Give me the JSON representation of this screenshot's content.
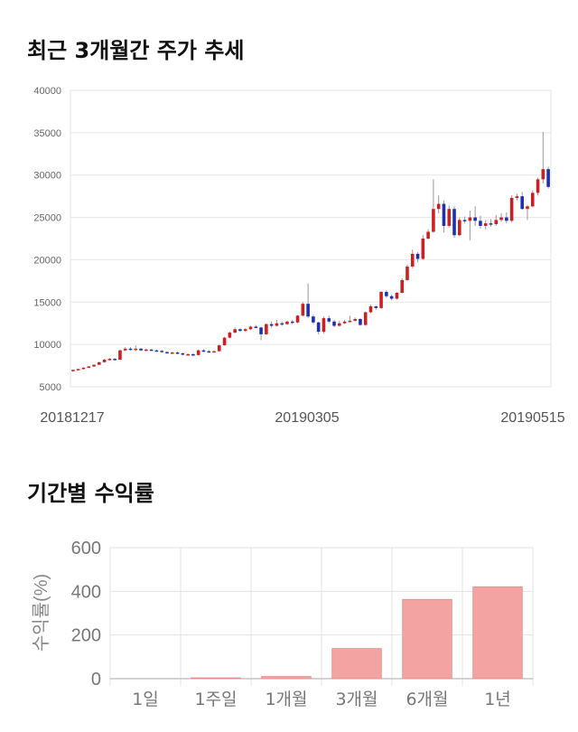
{
  "titles": {
    "price_trend": "최근 3개월간 주가 추세",
    "period_returns": "기간별 수익률"
  },
  "chart_data": [
    {
      "type": "candlestick",
      "title": "최근 3개월간 주가 추세",
      "ylim": [
        5000,
        40000
      ],
      "y_ticks": [
        5000,
        10000,
        15000,
        20000,
        25000,
        30000,
        35000,
        40000
      ],
      "x_tick_labels": [
        "20181217",
        "20190305",
        "20190515"
      ],
      "up_color": "#cc1f1f",
      "down_color": "#1f2fb4",
      "grid": true,
      "candles": [
        [
          6900,
          7000,
          6800,
          7050
        ],
        [
          7000,
          7100,
          6950,
          7150
        ],
        [
          7100,
          7250,
          7050,
          7300
        ],
        [
          7250,
          7400,
          7200,
          7450
        ],
        [
          7400,
          7600,
          7350,
          7650
        ],
        [
          7600,
          7900,
          7550,
          7950
        ],
        [
          7900,
          8200,
          7850,
          8300
        ],
        [
          8200,
          8300,
          8100,
          8400
        ],
        [
          8300,
          8200,
          8100,
          8400
        ],
        [
          8200,
          9300,
          8150,
          9400
        ],
        [
          9300,
          9500,
          9200,
          9700
        ],
        [
          9500,
          9400,
          9300,
          9700
        ],
        [
          9400,
          9500,
          9200,
          9900
        ],
        [
          9500,
          9300,
          9200,
          9600
        ],
        [
          9300,
          9400,
          9200,
          9500
        ],
        [
          9400,
          9300,
          9250,
          9450
        ],
        [
          9300,
          9250,
          9150,
          9400
        ],
        [
          9250,
          9100,
          9000,
          9350
        ],
        [
          9100,
          9000,
          8900,
          9200
        ],
        [
          9000,
          9050,
          8900,
          9150
        ],
        [
          9050,
          8950,
          8850,
          9150
        ],
        [
          8950,
          8800,
          8700,
          9050
        ],
        [
          8800,
          8850,
          8700,
          8950
        ],
        [
          8850,
          8750,
          8600,
          8950
        ],
        [
          8750,
          9300,
          8700,
          9400
        ],
        [
          9300,
          9200,
          9100,
          9450
        ],
        [
          9200,
          9150,
          9050,
          9350
        ],
        [
          9150,
          9200,
          9050,
          9300
        ],
        [
          9200,
          9900,
          9150,
          10000
        ],
        [
          9900,
          10800,
          9850,
          10900
        ],
        [
          10800,
          11400,
          10700,
          11500
        ],
        [
          11400,
          11800,
          11300,
          12000
        ],
        [
          11800,
          11600,
          11500,
          11900
        ],
        [
          11600,
          11800,
          11500,
          11950
        ],
        [
          11800,
          12100,
          11700,
          12200
        ],
        [
          12100,
          12000,
          11900,
          12300
        ],
        [
          12000,
          11200,
          10500,
          12100
        ],
        [
          11200,
          12400,
          11100,
          12500
        ],
        [
          12400,
          12200,
          12000,
          12700
        ],
        [
          12200,
          12500,
          12100,
          12900
        ],
        [
          12500,
          12400,
          12200,
          12700
        ],
        [
          12400,
          12700,
          12300,
          12800
        ],
        [
          12700,
          12600,
          12400,
          12900
        ],
        [
          12600,
          13400,
          12500,
          13500
        ],
        [
          13400,
          14800,
          13300,
          15000
        ],
        [
          14800,
          13300,
          13100,
          17200
        ],
        [
          13300,
          12600,
          12400,
          13500
        ],
        [
          12600,
          11500,
          11200,
          12700
        ],
        [
          11500,
          13100,
          11300,
          13300
        ],
        [
          13100,
          12700,
          12500,
          13400
        ],
        [
          12700,
          12200,
          12000,
          12900
        ],
        [
          12200,
          12500,
          12100,
          12800
        ],
        [
          12500,
          12700,
          12400,
          12900
        ],
        [
          12700,
          12800,
          12600,
          13400
        ],
        [
          12800,
          13000,
          12700,
          13200
        ],
        [
          13000,
          12300,
          12200,
          13100
        ],
        [
          12300,
          13800,
          12200,
          13900
        ],
        [
          13800,
          14500,
          13700,
          14700
        ],
        [
          14500,
          14300,
          14100,
          14600
        ],
        [
          14300,
          16200,
          14200,
          16300
        ],
        [
          16200,
          15700,
          15500,
          16400
        ],
        [
          15700,
          15400,
          15200,
          15900
        ],
        [
          15400,
          16100,
          15300,
          16200
        ],
        [
          16100,
          17600,
          16000,
          17800
        ],
        [
          17600,
          19200,
          17500,
          19400
        ],
        [
          19200,
          20700,
          19000,
          21200
        ],
        [
          20700,
          20100,
          19700,
          20900
        ],
        [
          20100,
          22500,
          20000,
          22900
        ],
        [
          22500,
          23300,
          22400,
          23600
        ],
        [
          23300,
          26000,
          23200,
          29500
        ],
        [
          26000,
          26600,
          25500,
          27600
        ],
        [
          26600,
          24000,
          23200,
          27000
        ],
        [
          24000,
          26000,
          23800,
          26400
        ],
        [
          26000,
          22900,
          22600,
          26300
        ],
        [
          22900,
          24700,
          22800,
          25000
        ],
        [
          24700,
          24600,
          24300,
          25100
        ],
        [
          24600,
          25000,
          22300,
          25800
        ],
        [
          25000,
          24600,
          24000,
          26300
        ],
        [
          24600,
          24000,
          23700,
          25200
        ],
        [
          24000,
          24300,
          23600,
          24700
        ],
        [
          24300,
          24200,
          23900,
          24800
        ],
        [
          24200,
          24700,
          24000,
          25300
        ],
        [
          24700,
          25000,
          24500,
          25500
        ],
        [
          25000,
          24600,
          24300,
          25600
        ],
        [
          24600,
          27300,
          24400,
          27600
        ],
        [
          27300,
          27500,
          27000,
          27800
        ],
        [
          27500,
          26000,
          25900,
          28000
        ],
        [
          26000,
          26300,
          24700,
          26500
        ],
        [
          26300,
          27900,
          26200,
          28200
        ],
        [
          27900,
          29500,
          27600,
          29700
        ],
        [
          29500,
          30700,
          29000,
          35100
        ],
        [
          30700,
          28600,
          28400,
          31000
        ]
      ]
    },
    {
      "type": "bar",
      "title": "기간별 수익률",
      "ylabel": "수익률(%)",
      "ylim": [
        0,
        600
      ],
      "y_ticks": [
        0,
        200,
        400,
        600
      ],
      "categories": [
        "1일",
        "1주일",
        "1개월",
        "3개월",
        "6개월",
        "1년"
      ],
      "values": [
        0,
        4,
        10,
        138,
        363,
        421
      ],
      "bar_color": "#f4a3a3",
      "bar_edge": "#e08a8a",
      "grid": true
    }
  ]
}
